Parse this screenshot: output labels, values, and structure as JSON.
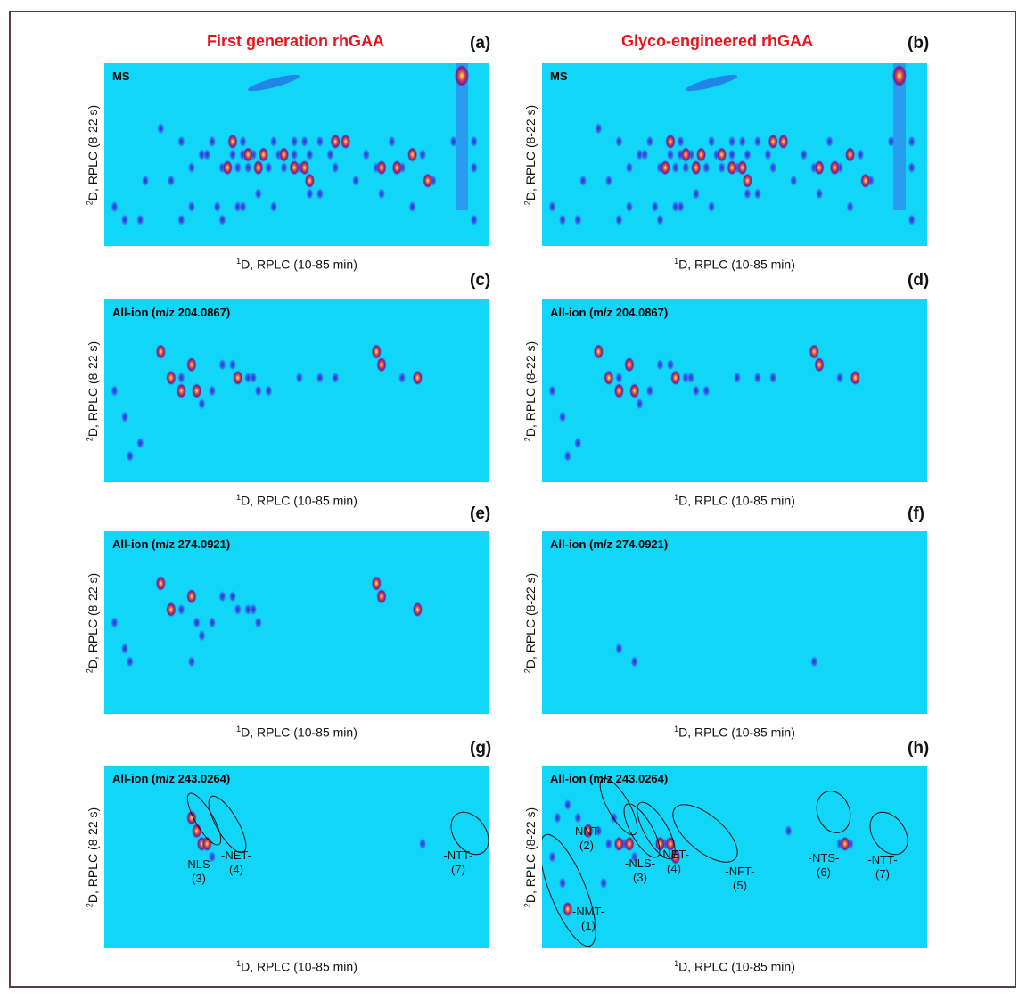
{
  "titles": {
    "left": "First generation rhGAA",
    "right": "Glyco-engineered rhGAA"
  },
  "axes": {
    "x_label": "D, RPLC (10-85 min)",
    "y_label": "D, RPLC (8-22 s)",
    "x_super": "1",
    "y_super": "2"
  },
  "chart_data": [
    {
      "type": "heatmap",
      "id": "a",
      "panel_label": "(a)",
      "title": "MS",
      "xlabel": "1D, RPLC (10-85 min)",
      "ylabel": "2D, RPLC (8-22 s)",
      "xlim": [
        10,
        85
      ],
      "ylim": [
        8,
        22
      ],
      "spots": [
        [
          21,
          13
        ],
        [
          18,
          17
        ],
        [
          25,
          14
        ],
        [
          27,
          16
        ],
        [
          29,
          15
        ],
        [
          30,
          15
        ],
        [
          31,
          14
        ],
        [
          33,
          16
        ],
        [
          34,
          16
        ],
        [
          35,
          14
        ],
        [
          35,
          15
        ],
        [
          36,
          16
        ],
        [
          37,
          14
        ],
        [
          37,
          15
        ],
        [
          38,
          16
        ],
        [
          39,
          15
        ],
        [
          40,
          16
        ],
        [
          40,
          18
        ],
        [
          42,
          16
        ],
        [
          43,
          14
        ],
        [
          44,
          15
        ],
        [
          45,
          16
        ],
        [
          47,
          14
        ],
        [
          47,
          15
        ],
        [
          48,
          16
        ],
        [
          49,
          14
        ],
        [
          50,
          15
        ],
        [
          52,
          14
        ],
        [
          54,
          15
        ],
        [
          55,
          16
        ],
        [
          57,
          14
        ],
        [
          59,
          17
        ],
        [
          61,
          15
        ],
        [
          63,
          16
        ],
        [
          64,
          18
        ],
        [
          66,
          14
        ],
        [
          68,
          16
        ],
        [
          70,
          19
        ],
        [
          72,
          15
        ],
        [
          74,
          17
        ],
        [
          78,
          14
        ],
        [
          82,
          14
        ],
        [
          82,
          16
        ],
        [
          82,
          20
        ],
        [
          32,
          19
        ],
        [
          33,
          20
        ],
        [
          36,
          19
        ],
        [
          37,
          19
        ],
        [
          27,
          19
        ],
        [
          25,
          20
        ],
        [
          17,
          20
        ],
        [
          14,
          20
        ],
        [
          12,
          19
        ],
        [
          23,
          17
        ],
        [
          43,
          19
        ],
        [
          50,
          18
        ],
        [
          52,
          18
        ]
      ],
      "intense": [
        [
          55,
          14
        ],
        [
          57,
          14
        ],
        [
          41,
          15
        ],
        [
          45,
          15
        ],
        [
          47,
          16
        ],
        [
          40,
          16
        ],
        [
          70,
          15
        ],
        [
          64,
          16
        ],
        [
          73,
          17
        ],
        [
          67,
          16
        ],
        [
          38,
          15
        ],
        [
          49,
          16
        ],
        [
          34,
          16
        ],
        [
          50,
          17
        ],
        [
          35,
          14
        ]
      ],
      "spot_labels": []
    },
    {
      "type": "heatmap",
      "id": "b",
      "panel_label": "(b)",
      "title": "MS",
      "xlabel": "1D, RPLC (10-85 min)",
      "ylabel": "2D, RPLC (8-22 s)",
      "xlim": [
        10,
        85
      ],
      "ylim": [
        8,
        22
      ],
      "spots": [
        [
          21,
          13
        ],
        [
          18,
          17
        ],
        [
          25,
          14
        ],
        [
          27,
          16
        ],
        [
          29,
          15
        ],
        [
          30,
          15
        ],
        [
          31,
          14
        ],
        [
          33,
          16
        ],
        [
          34,
          16
        ],
        [
          35,
          14
        ],
        [
          35,
          15
        ],
        [
          36,
          16
        ],
        [
          37,
          14
        ],
        [
          37,
          15
        ],
        [
          38,
          16
        ],
        [
          39,
          15
        ],
        [
          40,
          16
        ],
        [
          40,
          18
        ],
        [
          42,
          16
        ],
        [
          43,
          14
        ],
        [
          44,
          15
        ],
        [
          45,
          16
        ],
        [
          47,
          14
        ],
        [
          47,
          15
        ],
        [
          48,
          16
        ],
        [
          49,
          14
        ],
        [
          50,
          15
        ],
        [
          52,
          14
        ],
        [
          54,
          15
        ],
        [
          55,
          16
        ],
        [
          57,
          14
        ],
        [
          59,
          17
        ],
        [
          61,
          15
        ],
        [
          63,
          16
        ],
        [
          64,
          18
        ],
        [
          66,
          14
        ],
        [
          68,
          16
        ],
        [
          70,
          19
        ],
        [
          72,
          15
        ],
        [
          74,
          17
        ],
        [
          78,
          14
        ],
        [
          82,
          14
        ],
        [
          82,
          16
        ],
        [
          82,
          20
        ],
        [
          32,
          19
        ],
        [
          33,
          20
        ],
        [
          36,
          19
        ],
        [
          37,
          19
        ],
        [
          27,
          19
        ],
        [
          25,
          20
        ],
        [
          17,
          20
        ],
        [
          14,
          20
        ],
        [
          12,
          19
        ],
        [
          23,
          17
        ],
        [
          43,
          19
        ],
        [
          50,
          18
        ],
        [
          52,
          18
        ]
      ],
      "intense": [
        [
          55,
          14
        ],
        [
          57,
          14
        ],
        [
          41,
          15
        ],
        [
          45,
          15
        ],
        [
          47,
          16
        ],
        [
          40,
          16
        ],
        [
          70,
          15
        ],
        [
          64,
          16
        ],
        [
          73,
          17
        ],
        [
          67,
          16
        ],
        [
          38,
          15
        ],
        [
          49,
          16
        ],
        [
          34,
          16
        ],
        [
          50,
          17
        ],
        [
          35,
          14
        ]
      ],
      "spot_labels": []
    },
    {
      "type": "heatmap",
      "id": "c",
      "panel_label": "(c)",
      "title": "All-ion (m/z 204.0867)",
      "xlabel": "1D, RPLC (10-85 min)",
      "ylabel": "2D, RPLC (8-22 s)",
      "xlim": [
        10,
        85
      ],
      "ylim": [
        8,
        22
      ],
      "spots": [
        [
          12,
          15
        ],
        [
          14,
          17
        ],
        [
          17,
          19
        ],
        [
          15,
          20
        ],
        [
          21,
          12
        ],
        [
          23,
          14
        ],
        [
          25,
          14
        ],
        [
          25,
          15
        ],
        [
          27,
          13
        ],
        [
          28,
          15
        ],
        [
          29,
          16
        ],
        [
          31,
          15
        ],
        [
          33,
          13
        ],
        [
          35,
          13
        ],
        [
          36,
          14
        ],
        [
          38,
          14
        ],
        [
          39,
          14
        ],
        [
          40,
          15
        ],
        [
          42,
          15
        ],
        [
          63,
          12
        ],
        [
          64,
          13
        ],
        [
          68,
          14
        ],
        [
          71,
          14
        ],
        [
          48,
          14
        ],
        [
          52,
          14
        ],
        [
          55,
          14
        ]
      ],
      "intense": [
        [
          23,
          14
        ],
        [
          27,
          13
        ],
        [
          28,
          15
        ],
        [
          63,
          12
        ],
        [
          64,
          13
        ],
        [
          71,
          14
        ],
        [
          21,
          12
        ],
        [
          25,
          15
        ],
        [
          36,
          14
        ]
      ],
      "spot_labels": []
    },
    {
      "type": "heatmap",
      "id": "d",
      "panel_label": "(d)",
      "title": "All-ion (m/z 204.0867)",
      "xlabel": "1D, RPLC (10-85 min)",
      "ylabel": "2D, RPLC (8-22 s)",
      "xlim": [
        10,
        85
      ],
      "ylim": [
        8,
        22
      ],
      "spots": [
        [
          12,
          15
        ],
        [
          14,
          17
        ],
        [
          17,
          19
        ],
        [
          15,
          20
        ],
        [
          21,
          12
        ],
        [
          23,
          14
        ],
        [
          25,
          14
        ],
        [
          25,
          15
        ],
        [
          27,
          13
        ],
        [
          28,
          15
        ],
        [
          29,
          16
        ],
        [
          31,
          15
        ],
        [
          33,
          13
        ],
        [
          35,
          13
        ],
        [
          36,
          14
        ],
        [
          38,
          14
        ],
        [
          39,
          14
        ],
        [
          40,
          15
        ],
        [
          42,
          15
        ],
        [
          63,
          12
        ],
        [
          64,
          13
        ],
        [
          68,
          14
        ],
        [
          71,
          14
        ],
        [
          48,
          14
        ],
        [
          52,
          14
        ],
        [
          55,
          14
        ]
      ],
      "intense": [
        [
          23,
          14
        ],
        [
          27,
          13
        ],
        [
          28,
          15
        ],
        [
          63,
          12
        ],
        [
          64,
          13
        ],
        [
          71,
          14
        ],
        [
          21,
          12
        ],
        [
          25,
          15
        ],
        [
          36,
          14
        ]
      ],
      "spot_labels": []
    },
    {
      "type": "heatmap",
      "id": "e",
      "panel_label": "(e)",
      "title": "All-ion (m/z 274.0921)",
      "xlabel": "1D, RPLC (10-85 min)",
      "ylabel": "2D, RPLC (8-22 s)",
      "xlim": [
        10,
        85
      ],
      "ylim": [
        8,
        22
      ],
      "spots": [
        [
          21,
          12
        ],
        [
          23,
          14
        ],
        [
          25,
          14
        ],
        [
          27,
          13
        ],
        [
          28,
          15
        ],
        [
          29,
          16
        ],
        [
          31,
          15
        ],
        [
          33,
          13
        ],
        [
          35,
          13
        ],
        [
          36,
          14
        ],
        [
          38,
          14
        ],
        [
          39,
          14
        ],
        [
          40,
          15
        ],
        [
          63,
          12
        ],
        [
          64,
          13
        ],
        [
          71,
          14
        ],
        [
          12,
          15
        ],
        [
          14,
          17
        ],
        [
          15,
          18
        ],
        [
          27,
          18
        ]
      ],
      "intense": [
        [
          21,
          12
        ],
        [
          23,
          14
        ],
        [
          27,
          13
        ],
        [
          63,
          12
        ],
        [
          64,
          13
        ],
        [
          71,
          14
        ]
      ],
      "spot_labels": []
    },
    {
      "type": "heatmap",
      "id": "f",
      "panel_label": "(f)",
      "title": "All-ion (m/z 274.0921)",
      "xlabel": "1D, RPLC (10-85 min)",
      "ylabel": "2D, RPLC (8-22 s)",
      "xlim": [
        10,
        85
      ],
      "ylim": [
        8,
        22
      ],
      "spots": [
        [
          28,
          18
        ],
        [
          25,
          17
        ],
        [
          63,
          18
        ]
      ],
      "intense": [],
      "spot_labels": []
    },
    {
      "type": "heatmap",
      "id": "g",
      "panel_label": "(g)",
      "title": "All-ion (m/z 243.0264)",
      "xlabel": "1D, RPLC (10-85 min)",
      "ylabel": "2D, RPLC (8-22 s)",
      "xlim": [
        10,
        85
      ],
      "ylim": [
        8,
        22
      ],
      "spots": [
        [
          27,
          12
        ],
        [
          28,
          13
        ],
        [
          29,
          14
        ],
        [
          30,
          14
        ],
        [
          31,
          15
        ],
        [
          72,
          14
        ]
      ],
      "intense": [
        [
          27,
          12
        ],
        [
          28,
          13
        ],
        [
          29,
          14
        ],
        [
          30,
          14
        ]
      ],
      "spot_labels": [
        {
          "text": "-NLS-",
          "num": "(3)"
        },
        {
          "text": "-NET-",
          "num": "(4)"
        },
        {
          "text": "-NTT-",
          "num": "(7)"
        }
      ]
    },
    {
      "type": "heatmap",
      "id": "h",
      "panel_label": "(h)",
      "title": "All-ion (m/z 243.0264)",
      "xlabel": "1D, RPLC (10-85 min)",
      "ylabel": "2D, RPLC (8-22 s)",
      "xlim": [
        10,
        85
      ],
      "ylim": [
        8,
        22
      ],
      "spots": [
        [
          12,
          15
        ],
        [
          14,
          17
        ],
        [
          15,
          19
        ],
        [
          17,
          12
        ],
        [
          19,
          13
        ],
        [
          21,
          13
        ],
        [
          23,
          14
        ],
        [
          24,
          12
        ],
        [
          25,
          14
        ],
        [
          26,
          14
        ],
        [
          27,
          14
        ],
        [
          28,
          15
        ],
        [
          33,
          14
        ],
        [
          34,
          14
        ],
        [
          35,
          14
        ],
        [
          36,
          15
        ],
        [
          22,
          17
        ],
        [
          58,
          13
        ],
        [
          68,
          14
        ],
        [
          69,
          14
        ],
        [
          70,
          14
        ],
        [
          13,
          12
        ],
        [
          15,
          11
        ]
      ],
      "intense": [
        [
          19,
          13
        ],
        [
          25,
          14
        ],
        [
          27,
          14
        ],
        [
          33,
          14
        ],
        [
          35,
          14
        ],
        [
          36,
          15
        ],
        [
          69,
          14
        ],
        [
          15,
          19
        ]
      ],
      "spot_labels": [
        {
          "text": "-NNT-",
          "num": "(2)"
        },
        {
          "text": "-NLS-",
          "num": "(3)"
        },
        {
          "text": "-NET-",
          "num": "(4)"
        },
        {
          "text": "-NFT-",
          "num": "(5)"
        },
        {
          "text": "-NTS-",
          "num": "(6)"
        },
        {
          "text": "-NTT-",
          "num": "(7)"
        },
        {
          "text": "-NMT-",
          "num": "(1)"
        }
      ]
    }
  ]
}
